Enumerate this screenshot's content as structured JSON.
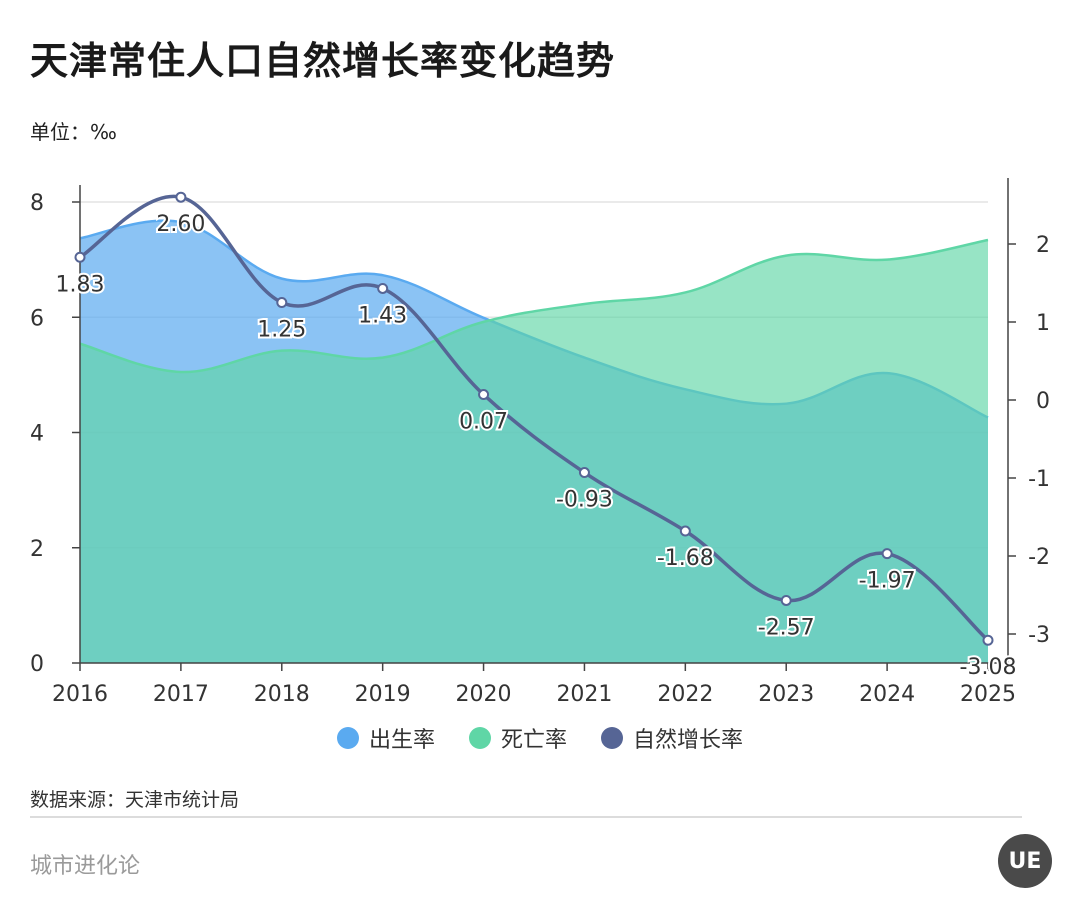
{
  "title": "天津常住人口自然增长率变化趋势",
  "unit_label": "单位：‰",
  "source": "数据来源：天津市统计局",
  "brand": "城市进化论",
  "logo_text": "UE",
  "colors": {
    "birth": "#5aaaf0",
    "death": "#5fd6a6",
    "growth": "#566595"
  },
  "legend": [
    {
      "key": "birth",
      "label": "出生率"
    },
    {
      "key": "death",
      "label": "死亡率"
    },
    {
      "key": "growth",
      "label": "自然增长率"
    }
  ],
  "chart_data": {
    "type": "area",
    "categories": [
      "2016",
      "2017",
      "2018",
      "2019",
      "2020",
      "2021",
      "2022",
      "2023",
      "2024",
      "2025"
    ],
    "left_axis": {
      "ylim": [
        0,
        8
      ],
      "ticks": [
        0,
        2,
        4,
        6,
        8
      ]
    },
    "right_axis": {
      "ylim": [
        -3.4,
        2.9
      ],
      "ticks": [
        -3,
        -2,
        -1,
        0,
        1,
        2
      ]
    },
    "series": [
      {
        "name": "出生率",
        "key": "birth",
        "type": "area",
        "axis": "left",
        "values": [
          7.37,
          7.65,
          6.67,
          6.73,
          5.99,
          5.3,
          4.75,
          4.5,
          5.03,
          4.26
        ]
      },
      {
        "name": "死亡率",
        "key": "death",
        "type": "area",
        "axis": "left",
        "values": [
          5.54,
          5.05,
          5.42,
          5.3,
          5.92,
          6.23,
          6.43,
          7.07,
          7.0,
          7.34
        ]
      },
      {
        "name": "自然增长率",
        "key": "growth",
        "type": "line",
        "axis": "right",
        "values": [
          1.83,
          2.6,
          1.25,
          1.43,
          0.07,
          -0.93,
          -1.68,
          -2.57,
          -1.97,
          -3.08
        ],
        "labels": [
          "1.83",
          "2.60",
          "1.25",
          "1.43",
          "0.07",
          "-0.93",
          "-1.68",
          "-2.57",
          "-1.97",
          "-3.08"
        ]
      }
    ]
  }
}
